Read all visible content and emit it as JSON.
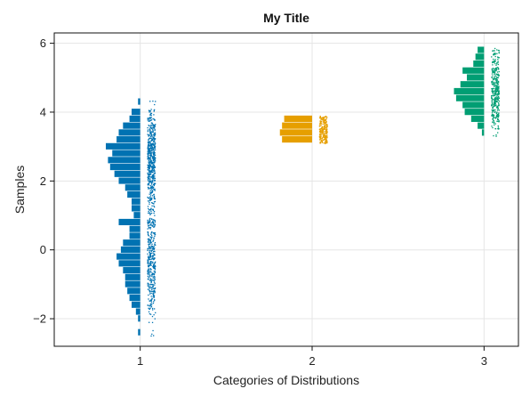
{
  "chart_data": {
    "type": "bar",
    "subtype": "half-violin histogram with jittered points",
    "title": "My Title",
    "xlabel": "Categories of Distributions",
    "ylabel": "Samples",
    "xlim": [
      0.5,
      3.2
    ],
    "ylim": [
      -2.8,
      6.3
    ],
    "xticks": [
      1,
      2,
      3
    ],
    "yticks": [
      -2,
      0,
      2,
      4,
      6
    ],
    "ytick_labels": [
      "−2",
      "0",
      "2",
      "4",
      "6"
    ],
    "grid": true,
    "legend": "none",
    "bin_width": 0.2,
    "series": [
      {
        "category": 1,
        "color": "#0072b2",
        "bins": [
          {
            "y": 4.3,
            "count": 1
          },
          {
            "y": 4.0,
            "count": 4
          },
          {
            "y": 3.8,
            "count": 5
          },
          {
            "y": 3.6,
            "count": 8
          },
          {
            "y": 3.4,
            "count": 10
          },
          {
            "y": 3.2,
            "count": 11
          },
          {
            "y": 3.0,
            "count": 16
          },
          {
            "y": 2.8,
            "count": 13
          },
          {
            "y": 2.6,
            "count": 15
          },
          {
            "y": 2.4,
            "count": 14
          },
          {
            "y": 2.2,
            "count": 12
          },
          {
            "y": 2.0,
            "count": 10
          },
          {
            "y": 1.8,
            "count": 7
          },
          {
            "y": 1.6,
            "count": 6
          },
          {
            "y": 1.4,
            "count": 4
          },
          {
            "y": 1.2,
            "count": 4
          },
          {
            "y": 1.0,
            "count": 3
          },
          {
            "y": 0.8,
            "count": 10
          },
          {
            "y": 0.6,
            "count": 5
          },
          {
            "y": 0.4,
            "count": 5
          },
          {
            "y": 0.2,
            "count": 8
          },
          {
            "y": 0.0,
            "count": 9
          },
          {
            "y": -0.2,
            "count": 11
          },
          {
            "y": -0.4,
            "count": 10
          },
          {
            "y": -0.6,
            "count": 8
          },
          {
            "y": -0.8,
            "count": 7
          },
          {
            "y": -1.0,
            "count": 7
          },
          {
            "y": -1.2,
            "count": 6
          },
          {
            "y": -1.4,
            "count": 5
          },
          {
            "y": -1.6,
            "count": 4
          },
          {
            "y": -1.8,
            "count": 2
          },
          {
            "y": -2.0,
            "count": 1
          },
          {
            "y": -2.2,
            "count": 0
          },
          {
            "y": -2.4,
            "count": 1
          }
        ],
        "points_range": [
          -2.4,
          4.3
        ]
      },
      {
        "category": 2,
        "color": "#e69f00",
        "bins": [
          {
            "y": 3.8,
            "count": 13
          },
          {
            "y": 3.6,
            "count": 14
          },
          {
            "y": 3.4,
            "count": 15
          },
          {
            "y": 3.2,
            "count": 14
          }
        ],
        "points_range": [
          3.1,
          3.9
        ]
      },
      {
        "category": 3,
        "color": "#009e73",
        "bins": [
          {
            "y": 5.8,
            "count": 3
          },
          {
            "y": 5.6,
            "count": 4
          },
          {
            "y": 5.4,
            "count": 5
          },
          {
            "y": 5.2,
            "count": 10
          },
          {
            "y": 5.0,
            "count": 8
          },
          {
            "y": 4.8,
            "count": 11
          },
          {
            "y": 4.6,
            "count": 14
          },
          {
            "y": 4.4,
            "count": 13
          },
          {
            "y": 4.2,
            "count": 10
          },
          {
            "y": 4.0,
            "count": 9
          },
          {
            "y": 3.8,
            "count": 6
          },
          {
            "y": 3.6,
            "count": 3
          },
          {
            "y": 3.4,
            "count": 1
          },
          {
            "y": 2.4,
            "count": 0
          }
        ],
        "points_range": [
          3.3,
          5.9
        ]
      }
    ]
  }
}
